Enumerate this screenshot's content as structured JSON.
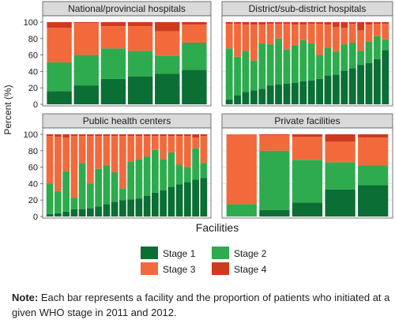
{
  "chart_data": {
    "type": "bar",
    "stacked": true,
    "ylabel": "Percent (%)",
    "xlabel": "Facilities",
    "ylim": [
      0,
      100
    ],
    "yticks": [
      0,
      20,
      40,
      60,
      80,
      100
    ],
    "grid": true,
    "legend_position": "bottom",
    "colors": {
      "Stage 1": "#0b6e35",
      "Stage 2": "#2eab4e",
      "Stage 3": "#f26a3c",
      "Stage 4": "#cf3a1c"
    },
    "legend": [
      "Stage 1",
      "Stage 2",
      "Stage 3",
      "Stage 4"
    ],
    "panels": [
      {
        "title": "National/provincial hospitals",
        "bars": [
          [
            16,
            35,
            42,
            7
          ],
          [
            23,
            37,
            39,
            1
          ],
          [
            31,
            37,
            27,
            5
          ],
          [
            34,
            31,
            30,
            5
          ],
          [
            37,
            22,
            30,
            11
          ],
          [
            42,
            33,
            22,
            3
          ]
        ]
      },
      {
        "title": "District/sub-district hospitals",
        "bars": [
          [
            6,
            62,
            30,
            2
          ],
          [
            11,
            47,
            40,
            2
          ],
          [
            15,
            50,
            32,
            3
          ],
          [
            17,
            36,
            44,
            3
          ],
          [
            19,
            55,
            23,
            3
          ],
          [
            23,
            50,
            25,
            2
          ],
          [
            24,
            56,
            18,
            2
          ],
          [
            25,
            42,
            31,
            2
          ],
          [
            26,
            46,
            25,
            3
          ],
          [
            28,
            50,
            19,
            3
          ],
          [
            29,
            45,
            24,
            2
          ],
          [
            31,
            29,
            38,
            2
          ],
          [
            35,
            34,
            28,
            3
          ],
          [
            36,
            28,
            30,
            6
          ],
          [
            41,
            32,
            20,
            7
          ],
          [
            44,
            31,
            23,
            2
          ],
          [
            48,
            17,
            25,
            10
          ],
          [
            50,
            26,
            21,
            3
          ],
          [
            55,
            28,
            15,
            2
          ],
          [
            66,
            13,
            19,
            2
          ]
        ]
      },
      {
        "title": "Public health centers",
        "bars": [
          [
            3,
            37,
            58,
            2
          ],
          [
            4,
            27,
            66,
            3
          ],
          [
            6,
            49,
            41,
            4
          ],
          [
            9,
            14,
            75,
            2
          ],
          [
            9,
            56,
            33,
            2
          ],
          [
            10,
            30,
            58,
            2
          ],
          [
            12,
            46,
            40,
            2
          ],
          [
            15,
            47,
            36,
            2
          ],
          [
            18,
            36,
            44,
            2
          ],
          [
            20,
            14,
            64,
            2
          ],
          [
            21,
            46,
            31,
            2
          ],
          [
            22,
            48,
            28,
            2
          ],
          [
            25,
            48,
            25,
            2
          ],
          [
            29,
            52,
            17,
            2
          ],
          [
            32,
            38,
            28,
            2
          ],
          [
            36,
            42,
            20,
            2
          ],
          [
            39,
            24,
            35,
            2
          ],
          [
            42,
            18,
            38,
            2
          ],
          [
            45,
            38,
            13,
            4
          ],
          [
            47,
            18,
            33,
            2
          ]
        ]
      },
      {
        "title": "Private facilities",
        "bars": [
          [
            0,
            15,
            85,
            0
          ],
          [
            8,
            72,
            19,
            1
          ],
          [
            17,
            52,
            28,
            3
          ],
          [
            33,
            33,
            25,
            9
          ],
          [
            38,
            24,
            34,
            4
          ]
        ]
      }
    ]
  },
  "note": {
    "label": "Note:",
    "text": " Each bar represents a facility and the proportion of patients who initiated at a given WHO stage in 2011 and 2012."
  }
}
